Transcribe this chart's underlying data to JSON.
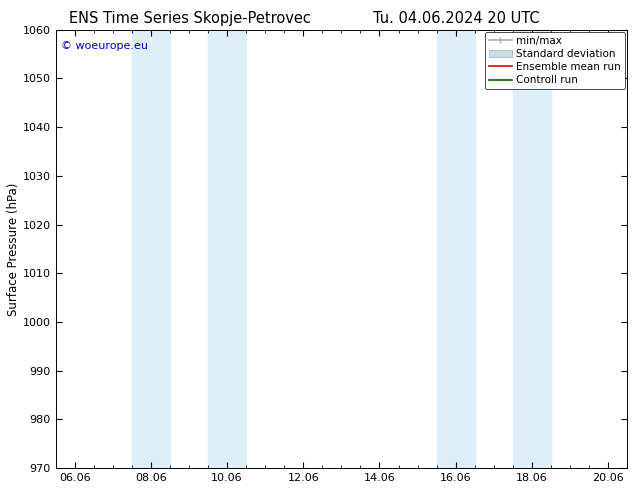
{
  "title_left": "ENS Time Series Skopje-Petrovec",
  "title_right": "Tu. 04.06.2024 20 UTC",
  "ylabel": "Surface Pressure (hPa)",
  "ylim": [
    970,
    1060
  ],
  "yticks": [
    970,
    980,
    990,
    1000,
    1010,
    1020,
    1030,
    1040,
    1050,
    1060
  ],
  "xtick_major_labels": [
    "06.06",
    "08.06",
    "10.06",
    "12.06",
    "14.06",
    "16.06",
    "18.06",
    "20.06"
  ],
  "xtick_major_pos": [
    0,
    48,
    96,
    144,
    192,
    240,
    288,
    336
  ],
  "xlim": [
    -12,
    348
  ],
  "shaded_bands": [
    {
      "x_start": 36,
      "x_end": 60,
      "color": "#ddeef8"
    },
    {
      "x_start": 84,
      "x_end": 108,
      "color": "#ddeef8"
    },
    {
      "x_start": 228,
      "x_end": 252,
      "color": "#ddeef8"
    },
    {
      "x_start": 276,
      "x_end": 300,
      "color": "#ddeef8"
    }
  ],
  "watermark_text": "© woeurope.eu",
  "watermark_color": "#0000cc",
  "legend_entries": [
    {
      "label": "min/max",
      "color": "#aaaaaa",
      "lw": 1.2
    },
    {
      "label": "Standard deviation",
      "color": "#c8dcea",
      "lw": 5
    },
    {
      "label": "Ensemble mean run",
      "color": "#dd0000",
      "lw": 1.2
    },
    {
      "label": "Controll run",
      "color": "#006600",
      "lw": 1.2
    }
  ],
  "bg_color": "#ffffff",
  "title_fontsize": 10.5,
  "ylabel_fontsize": 8.5,
  "tick_fontsize": 8,
  "legend_fontsize": 7.5
}
